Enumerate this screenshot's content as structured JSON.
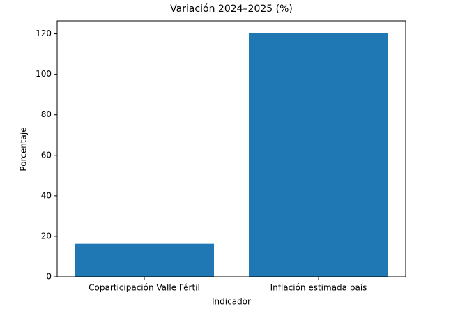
{
  "chart_data": {
    "type": "bar",
    "title": "Variación 2024–2025 (%)",
    "categories": [
      "Coparticipación Valle Fértil",
      "Inflación estimada país"
    ],
    "values": [
      16.3,
      120.4
    ],
    "color": "#1f77b4",
    "xlabel": "Indicador",
    "ylabel": "Porcentaje",
    "ylim": [
      0,
      126.4
    ],
    "yticks": [
      0,
      20,
      40,
      60,
      80,
      100,
      120
    ],
    "grid": false
  }
}
